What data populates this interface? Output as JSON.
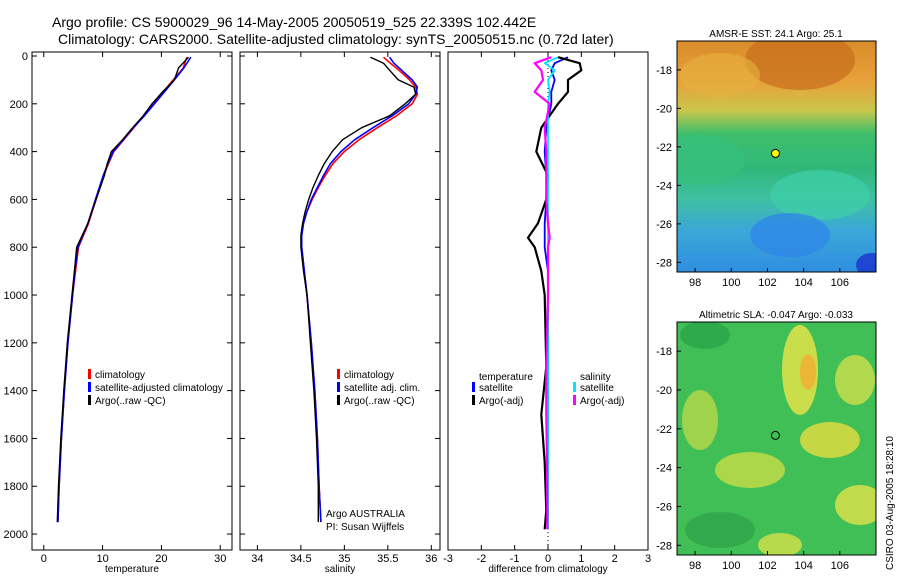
{
  "header": {
    "line1": "Argo profile: CS 5900029_96 14-May-2005 20050519_525 22.339S 102.442E",
    "line2": "Climatology: CARS2000. Satellite-adjusted climatology: synTS_20050515.nc (0.72d later)"
  },
  "footer": {
    "stamp": "CSIRO 03-Aug-2005 18:28:10",
    "argo": "Argo AUSTRALIA",
    "pi": "PI: Susan Wijffels"
  },
  "colors": {
    "climatology": "#ff0000",
    "satellite": "#0000ff",
    "argo": "#000000",
    "salinity_satellite": "#00e5ff",
    "salinity_argo": "#ff00ff",
    "marker": "#ffff00"
  },
  "chart_data": [
    {
      "type": "line",
      "id": "temperature",
      "xlabel": "temperature",
      "xlim": [
        -2,
        32
      ],
      "ylim": [
        0,
        2050
      ],
      "xticks": [
        0,
        10,
        20,
        30
      ],
      "yticks": [
        0,
        200,
        400,
        600,
        800,
        1000,
        1200,
        1400,
        1600,
        1800,
        2000
      ],
      "legend": [
        "climatology",
        "satellite-adjusted climatology",
        "Argo(..raw -QC)"
      ],
      "depth": [
        5,
        50,
        100,
        150,
        200,
        250,
        300,
        350,
        400,
        450,
        500,
        600,
        700,
        800,
        900,
        1000,
        1200,
        1400,
        1600,
        1800,
        1950
      ],
      "series": [
        {
          "name": "climatology",
          "values": [
            24.3,
            23.7,
            22.0,
            20.3,
            18.7,
            17.0,
            15.3,
            13.6,
            11.9,
            11.0,
            10.2,
            8.9,
            7.6,
            5.9,
            5.4,
            4.9,
            4.1,
            3.5,
            3.0,
            2.6,
            2.4
          ]
        },
        {
          "name": "satellite",
          "values": [
            25.0,
            23.8,
            22.2,
            20.5,
            18.8,
            17.1,
            15.2,
            13.5,
            11.8,
            10.9,
            10.1,
            8.8,
            7.5,
            5.8,
            5.3,
            4.9,
            4.1,
            3.5,
            3.0,
            2.6,
            2.4
          ]
        },
        {
          "name": "Argo",
          "values": [
            24.6,
            22.9,
            22.2,
            20.2,
            18.4,
            16.9,
            15.1,
            13.4,
            11.5,
            10.8,
            10.3,
            8.9,
            7.5,
            5.6,
            5.2,
            4.8,
            4.0,
            3.4,
            2.9,
            2.5,
            2.3
          ]
        }
      ]
    },
    {
      "type": "line",
      "id": "salinity",
      "xlabel": "salinity",
      "xlim": [
        33.8,
        36.1
      ],
      "ylim": [
        0,
        2050
      ],
      "xticks": [
        34,
        34.5,
        35,
        35.5,
        36
      ],
      "yticks": [
        0,
        200,
        400,
        600,
        800,
        1000,
        1200,
        1400,
        1600,
        1800,
        2000
      ],
      "legend": [
        "climatology",
        "satellite adj. clim.",
        "Argo(..raw -QC)"
      ],
      "depth": [
        5,
        30,
        60,
        100,
        130,
        160,
        200,
        250,
        300,
        350,
        400,
        450,
        500,
        550,
        600,
        650,
        700,
        750,
        800,
        900,
        1000,
        1200,
        1400,
        1600,
        1800,
        1950
      ],
      "series": [
        {
          "name": "climatology",
          "values": [
            35.45,
            35.53,
            35.63,
            35.75,
            35.82,
            35.84,
            35.78,
            35.6,
            35.38,
            35.17,
            35.0,
            34.87,
            34.78,
            34.7,
            34.63,
            34.57,
            34.53,
            34.51,
            34.51,
            34.54,
            34.57,
            34.62,
            34.66,
            34.69,
            34.71,
            34.73
          ]
        },
        {
          "name": "satellite",
          "values": [
            35.52,
            35.57,
            35.66,
            35.78,
            35.84,
            35.82,
            35.74,
            35.55,
            35.33,
            35.12,
            34.96,
            34.84,
            34.76,
            34.69,
            34.62,
            34.57,
            34.53,
            34.51,
            34.51,
            34.54,
            34.57,
            34.62,
            34.66,
            34.69,
            34.71,
            34.73
          ]
        },
        {
          "name": "Argo",
          "values": [
            35.3,
            35.45,
            35.52,
            35.62,
            35.8,
            35.82,
            35.7,
            35.52,
            35.2,
            34.98,
            34.86,
            34.77,
            34.7,
            34.64,
            34.59,
            34.55,
            34.52,
            34.5,
            34.5,
            34.53,
            34.57,
            34.61,
            34.65,
            34.68,
            34.7,
            34.7
          ]
        }
      ]
    },
    {
      "type": "line",
      "id": "difference",
      "xlabel": "difference from climatology",
      "xlim": [
        -3,
        3
      ],
      "ylim": [
        0,
        2050
      ],
      "xticks": [
        -3,
        -2,
        -1,
        0,
        1,
        2,
        3
      ],
      "legend_temperature": [
        "temperature",
        "satellite",
        "Argo(-adj)"
      ],
      "legend_salinity": [
        "salinity",
        "satellite",
        "Argo(-adj)"
      ],
      "depth": [
        5,
        30,
        60,
        100,
        150,
        200,
        300,
        400,
        500,
        600,
        700,
        760,
        800,
        900,
        1000,
        1300,
        1500,
        1700,
        1900,
        1980
      ],
      "series": [
        {
          "name": "temperature satellite",
          "values": [
            0.6,
            0.2,
            0.1,
            0.2,
            0.1,
            0.1,
            -0.05,
            -0.1,
            -0.05,
            -0.05,
            -0.1,
            -0.1,
            -0.1,
            0.0,
            0.0,
            0.0,
            0.0,
            0.0,
            0.0,
            0.0
          ]
        },
        {
          "name": "temperature Argo",
          "values": [
            0.3,
            0.95,
            1.0,
            0.6,
            0.6,
            0.3,
            -0.2,
            -0.35,
            0.0,
            -0.05,
            -0.3,
            -0.6,
            -0.4,
            -0.2,
            -0.1,
            -0.05,
            -0.2,
            -0.1,
            -0.05,
            -0.1
          ]
        },
        {
          "name": "salinity satellite",
          "values": [
            0.3,
            -0.1,
            0.2,
            0.0,
            0.05,
            0.0,
            0.0,
            0.0,
            0.0,
            0.0,
            0.0,
            0.0,
            0.0,
            0.0,
            0.0,
            0.0,
            0.0,
            0.0,
            0.0,
            0.0
          ]
        },
        {
          "name": "salinity Argo",
          "values": [
            0.1,
            -0.4,
            -0.2,
            -0.15,
            -0.4,
            0.05,
            -0.1,
            -0.05,
            -0.05,
            -0.05,
            0.0,
            0.05,
            0.0,
            0.0,
            0.0,
            -0.05,
            -0.05,
            -0.03,
            -0.02,
            -0.02
          ]
        }
      ]
    },
    {
      "type": "heatmap",
      "id": "sst_map",
      "title": "AMSR-E SST: 24.1 Argo: 25.1",
      "xlim": [
        97,
        108
      ],
      "ylim": [
        -28.5,
        -16.5
      ],
      "xticks": [
        98,
        100,
        102,
        104,
        106
      ],
      "yticks": [
        -18,
        -20,
        -22,
        -24,
        -26,
        -28
      ],
      "marker": [
        102.442,
        -22.339
      ]
    },
    {
      "type": "heatmap",
      "id": "sla_map",
      "title": "Altimetric SLA: -0.047 Argo: -0.033",
      "xlim": [
        97,
        108
      ],
      "ylim": [
        -28.5,
        -16.5
      ],
      "xticks": [
        98,
        100,
        102,
        104,
        106
      ],
      "yticks": [
        -18,
        -20,
        -22,
        -24,
        -26,
        -28
      ],
      "marker": [
        102.442,
        -22.339
      ]
    }
  ]
}
